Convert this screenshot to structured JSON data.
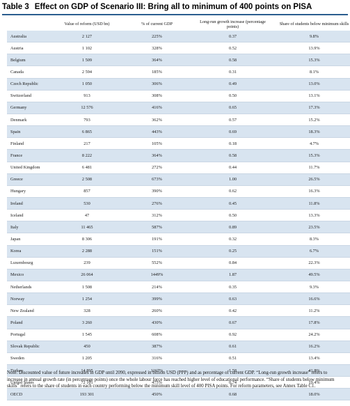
{
  "title": {
    "label": "Table 3",
    "text": "Effect on GDP of Scenario III: Bring all to minimum of 400 points on PISA"
  },
  "colors": {
    "accent": "#2a5d8f",
    "row_shade": "#d8e4f0"
  },
  "table": {
    "headers": [
      "",
      "Value of reform (USD bn)",
      "% of current GDP",
      "Long-run growth increase (percentage points)",
      "Share of students below minimum skills"
    ],
    "rows": [
      [
        "Australia",
        "2 127",
        "225%",
        "0.37",
        "9.8%"
      ],
      [
        "Austria",
        "1 102",
        "328%",
        "0.52",
        "13.9%"
      ],
      [
        "Belgium",
        "1 509",
        "364%",
        "0.58",
        "15.3%"
      ],
      [
        "Canada",
        "2 594",
        "185%",
        "0.31",
        "8.1%"
      ],
      [
        "Czech Republic",
        "1 050",
        "306%",
        "0.49",
        "13.0%"
      ],
      [
        "Switzerland",
        "913",
        "308%",
        "0.50",
        "13.1%"
      ],
      [
        "Germany",
        "12 576",
        "416%",
        "0.65",
        "17.3%"
      ],
      [
        "Denmark",
        "793",
        "362%",
        "0.57",
        "15.2%"
      ],
      [
        "Spain",
        "6 865",
        "443%",
        "0.69",
        "18.3%"
      ],
      [
        "Finland",
        "217",
        "105%",
        "0.18",
        "4.7%"
      ],
      [
        "France",
        "8 222",
        "364%",
        "0.58",
        "15.3%"
      ],
      [
        "United Kingdom",
        "6 481",
        "272%",
        "0.44",
        "11.7%"
      ],
      [
        "Greece",
        "2 508",
        "673%",
        "1.00",
        "26.5%"
      ],
      [
        "Hungary",
        "857",
        "390%",
        "0.62",
        "16.3%"
      ],
      [
        "Ireland",
        "530",
        "276%",
        "0.45",
        "11.8%"
      ],
      [
        "Iceland",
        "47",
        "312%",
        "0.50",
        "13.3%"
      ],
      [
        "Italy",
        "11 465",
        "587%",
        "0.89",
        "23.5%"
      ],
      [
        "Japan",
        "8 306",
        "191%",
        "0.32",
        "8.3%"
      ],
      [
        "Korea",
        "2 288",
        "151%",
        "0.25",
        "6.7%"
      ],
      [
        "Luxembourg",
        "239",
        "552%",
        "0.84",
        "22.3%"
      ],
      [
        "Mexico",
        "26 064",
        "1449%",
        "1.87",
        "49.5%"
      ],
      [
        "Netherlands",
        "1 508",
        "214%",
        "0.35",
        "9.3%"
      ],
      [
        "Norway",
        "1 254",
        "399%",
        "0.63",
        "16.6%"
      ],
      [
        "New Zealand",
        "328",
        "260%",
        "0.42",
        "11.2%"
      ],
      [
        "Poland",
        "3 260",
        "430%",
        "0.67",
        "17.8%"
      ],
      [
        "Portugal",
        "1 545",
        "608%",
        "0.92",
        "24.2%"
      ],
      [
        "Slovak Republic",
        "450",
        "387%",
        "0.61",
        "16.2%"
      ],
      [
        "Sweden",
        "1 205",
        "316%",
        "0.51",
        "13.4%"
      ],
      [
        "Turkey",
        "14 895",
        "1167%",
        "1.58",
        "41.8%"
      ],
      [
        "United States",
        "72 101",
        "475%",
        "0.74",
        "19.4%"
      ],
      [
        "OECD",
        "193 301",
        "450%",
        "0.68",
        "18.0%"
      ]
    ]
  },
  "notes": "Note: Discounted value of future increases in GDP until 2090, expressed in billion USD (PPP) and as percentage of current GDP. “Long-run growth increase” refers to increase in annual growth rate (in percentage points) once the whole labour force has reached higher level of educational performance. “Share of students below minimum skills” refers to the share of students in each country performing below the minimum skill level of 400 PISA points. For reform parameters, see Annex Table C1."
}
